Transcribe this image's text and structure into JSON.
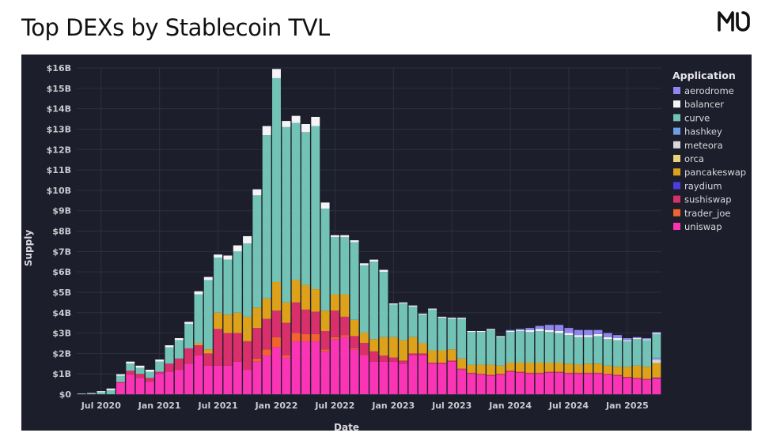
{
  "header": {
    "title": "Top DEXs by Stablecoin TVL",
    "logo": "MO"
  },
  "colors": {
    "aerodrome": "#8f86ef",
    "balancer": "#f4f4f6",
    "curve": "#72c2b6",
    "hashkey": "#6b9fe6",
    "meteora": "#d8d8dc",
    "orca": "#ead27a",
    "pancakeswap": "#dda21a",
    "raydium": "#4c3ce4",
    "sushiswap": "#d9306b",
    "trader_joe": "#f2642e",
    "uniswap": "#fb34b6"
  },
  "chart_data": {
    "type": "bar",
    "stacked": true,
    "title": "Top DEXs by Stablecoin TVL",
    "xlabel": "Date",
    "ylabel": "Supply",
    "ylim": [
      0,
      16
    ],
    "y_unit": "billions USD",
    "y_ticks": [
      "$0",
      "$1B",
      "$2B",
      "$3B",
      "$4B",
      "$5B",
      "$6B",
      "$7B",
      "$8B",
      "$9B",
      "$10B",
      "$11B",
      "$12B",
      "$13B",
      "$14B",
      "$15B",
      "$16B"
    ],
    "x_ticks": [
      "Jul 2020",
      "Jan 2021",
      "Jul 2021",
      "Jan 2022",
      "Jul 2022",
      "Jan 2023",
      "Jul 2023",
      "Jan 2024",
      "Jul 2024",
      "Jan 2025"
    ],
    "x_tick_month_index": [
      2,
      8,
      14,
      20,
      26,
      32,
      38,
      44,
      50,
      56
    ],
    "grid": true,
    "legend": {
      "title": "Application",
      "position": "right"
    },
    "categories": [
      "May 2020",
      "Jun 2020",
      "Jul 2020",
      "Aug 2020",
      "Sep 2020",
      "Oct 2020",
      "Nov 2020",
      "Dec 2020",
      "Jan 2021",
      "Feb 2021",
      "Mar 2021",
      "Apr 2021",
      "May 2021",
      "Jun 2021",
      "Jul 2021",
      "Aug 2021",
      "Sep 2021",
      "Oct 2021",
      "Nov 2021",
      "Dec 2021",
      "Jan 2022",
      "Feb 2022",
      "Mar 2022",
      "Apr 2022",
      "May 2022",
      "Jun 2022",
      "Jul 2022",
      "Aug 2022",
      "Sep 2022",
      "Oct 2022",
      "Nov 2022",
      "Dec 2022",
      "Jan 2023",
      "Feb 2023",
      "Mar 2023",
      "Apr 2023",
      "May 2023",
      "Jun 2023",
      "Jul 2023",
      "Aug 2023",
      "Sep 2023",
      "Oct 2023",
      "Nov 2023",
      "Dec 2023",
      "Jan 2024",
      "Feb 2024",
      "Mar 2024",
      "Apr 2024",
      "May 2024",
      "Jun 2024",
      "Jul 2024",
      "Aug 2024",
      "Sep 2024",
      "Oct 2024",
      "Nov 2024",
      "Dec 2024",
      "Jan 2025",
      "Feb 2025",
      "Mar 2025",
      "Apr 2025"
    ],
    "series": [
      {
        "name": "uniswap",
        "values": [
          0.0,
          0.0,
          0.0,
          0.0,
          0.55,
          0.95,
          0.8,
          0.6,
          1.0,
          1.1,
          1.2,
          1.5,
          1.9,
          1.4,
          1.4,
          1.4,
          1.6,
          1.2,
          1.6,
          1.9,
          2.3,
          1.8,
          2.6,
          2.6,
          2.6,
          2.1,
          2.7,
          2.8,
          2.2,
          1.9,
          1.6,
          1.6,
          1.6,
          1.5,
          1.9,
          1.9,
          1.5,
          1.5,
          1.6,
          1.2,
          1.0,
          0.95,
          0.9,
          0.95,
          1.1,
          1.05,
          1.0,
          1.0,
          1.05,
          1.05,
          1.0,
          1.0,
          1.0,
          1.0,
          0.95,
          0.9,
          0.8,
          0.75,
          0.7,
          0.75
        ]
      },
      {
        "name": "trader_joe",
        "values": [
          0,
          0,
          0,
          0,
          0,
          0,
          0,
          0,
          0,
          0,
          0,
          0,
          0,
          0,
          0,
          0,
          0,
          0,
          0.15,
          0.3,
          0.5,
          0.1,
          0.4,
          0.35,
          0.35,
          0.1,
          0.1,
          0.1,
          0.05,
          0.02,
          0,
          0,
          0,
          0,
          0,
          0,
          0,
          0,
          0,
          0,
          0,
          0,
          0,
          0,
          0,
          0,
          0,
          0,
          0,
          0,
          0,
          0,
          0,
          0,
          0,
          0,
          0,
          0,
          0,
          0
        ]
      },
      {
        "name": "sushiswap",
        "values": [
          0,
          0,
          0,
          0,
          0.05,
          0.2,
          0.2,
          0.2,
          0.1,
          0.4,
          0.55,
          0.75,
          0.5,
          0.6,
          1.8,
          1.6,
          1.4,
          1.4,
          1.5,
          1.5,
          1.3,
          1.6,
          1.5,
          1.2,
          1.1,
          0.9,
          1.3,
          0.9,
          0.6,
          0.6,
          0.5,
          0.3,
          0.2,
          0.15,
          0.1,
          0.1,
          0.05,
          0.05,
          0.05,
          0.05,
          0.05,
          0.05,
          0.05,
          0.05,
          0.05,
          0.05,
          0.05,
          0.05,
          0.05,
          0.05,
          0.05,
          0.05,
          0.05,
          0.05,
          0.05,
          0.05,
          0.05,
          0.05,
          0.05,
          0.05
        ]
      },
      {
        "name": "pancakeswap",
        "values": [
          0,
          0,
          0,
          0,
          0,
          0,
          0,
          0,
          0,
          0,
          0,
          0,
          0.1,
          0.2,
          0.8,
          0.9,
          1.0,
          1.2,
          1.0,
          1.0,
          1.4,
          1.0,
          1.1,
          1.2,
          1.1,
          1.0,
          0.8,
          1.1,
          0.8,
          0.5,
          0.6,
          0.9,
          1.0,
          1.0,
          0.8,
          0.5,
          0.6,
          0.6,
          0.55,
          0.5,
          0.4,
          0.45,
          0.5,
          0.4,
          0.4,
          0.45,
          0.5,
          0.5,
          0.45,
          0.45,
          0.45,
          0.4,
          0.45,
          0.45,
          0.4,
          0.4,
          0.5,
          0.6,
          0.6,
          0.7
        ]
      },
      {
        "name": "curve",
        "values": [
          0.02,
          0.04,
          0.1,
          0.2,
          0.3,
          0.35,
          0.3,
          0.3,
          0.5,
          0.8,
          0.9,
          1.2,
          2.4,
          3.4,
          2.7,
          2.7,
          3.0,
          3.6,
          5.5,
          8.0,
          10.0,
          8.6,
          7.7,
          7.5,
          8.0,
          5.0,
          2.8,
          2.8,
          3.8,
          3.3,
          3.8,
          3.2,
          1.6,
          1.8,
          1.5,
          1.4,
          2.0,
          1.6,
          1.5,
          1.95,
          1.6,
          1.6,
          1.7,
          1.4,
          1.5,
          1.55,
          1.5,
          1.55,
          1.5,
          1.45,
          1.4,
          1.35,
          1.3,
          1.35,
          1.3,
          1.3,
          1.25,
          1.3,
          1.3,
          1.15
        ]
      },
      {
        "name": "balancer",
        "values": [
          0.01,
          0.02,
          0.05,
          0.08,
          0.08,
          0.1,
          0.1,
          0.1,
          0.1,
          0.1,
          0.1,
          0.1,
          0.15,
          0.15,
          0.15,
          0.2,
          0.3,
          0.35,
          0.3,
          0.45,
          0.45,
          0.3,
          0.35,
          0.4,
          0.45,
          0.3,
          0.1,
          0.1,
          0.1,
          0.1,
          0.1,
          0.1,
          0.05,
          0.05,
          0.05,
          0.05,
          0.05,
          0.05,
          0.05,
          0.05,
          0.05,
          0.05,
          0.05,
          0.05,
          0.05,
          0.05,
          0.1,
          0.1,
          0.1,
          0.1,
          0.1,
          0.1,
          0.1,
          0.1,
          0.1,
          0.1,
          0.05,
          0.05,
          0.05,
          0.05
        ]
      },
      {
        "name": "aerodrome",
        "values": [
          0,
          0,
          0,
          0,
          0,
          0,
          0,
          0,
          0,
          0,
          0,
          0,
          0,
          0,
          0,
          0,
          0,
          0,
          0,
          0,
          0,
          0,
          0,
          0,
          0,
          0,
          0,
          0,
          0,
          0,
          0,
          0,
          0,
          0,
          0,
          0,
          0,
          0,
          0,
          0,
          0,
          0,
          0,
          0,
          0.05,
          0.05,
          0.1,
          0.15,
          0.25,
          0.3,
          0.25,
          0.25,
          0.25,
          0.2,
          0.2,
          0.15,
          0.1,
          0.05,
          0.05,
          0.05
        ]
      },
      {
        "name": "meteora",
        "values": [
          0,
          0,
          0,
          0,
          0,
          0,
          0,
          0,
          0,
          0,
          0,
          0,
          0,
          0,
          0,
          0,
          0,
          0,
          0,
          0,
          0,
          0,
          0,
          0,
          0,
          0,
          0,
          0,
          0,
          0,
          0,
          0,
          0,
          0,
          0,
          0,
          0,
          0,
          0,
          0,
          0,
          0,
          0,
          0,
          0,
          0,
          0,
          0,
          0,
          0,
          0,
          0,
          0,
          0,
          0,
          0,
          0,
          0,
          0,
          0.15
        ]
      },
      {
        "name": "hashkey",
        "values": [
          0,
          0,
          0,
          0,
          0,
          0,
          0,
          0,
          0,
          0,
          0,
          0,
          0,
          0,
          0,
          0,
          0,
          0,
          0,
          0,
          0,
          0,
          0,
          0,
          0,
          0,
          0,
          0,
          0,
          0,
          0,
          0,
          0,
          0,
          0,
          0,
          0,
          0,
          0,
          0,
          0,
          0,
          0,
          0,
          0,
          0,
          0,
          0,
          0,
          0,
          0,
          0,
          0,
          0,
          0,
          0,
          0,
          0,
          0,
          0.1
        ]
      },
      {
        "name": "orca",
        "values": [
          0,
          0,
          0,
          0,
          0,
          0,
          0,
          0,
          0,
          0,
          0,
          0,
          0,
          0,
          0,
          0,
          0,
          0,
          0,
          0,
          0,
          0,
          0,
          0,
          0,
          0,
          0,
          0,
          0,
          0,
          0,
          0,
          0,
          0,
          0,
          0,
          0,
          0,
          0,
          0,
          0,
          0,
          0,
          0,
          0,
          0,
          0,
          0,
          0,
          0,
          0,
          0,
          0,
          0,
          0,
          0,
          0,
          0,
          0,
          0.03
        ]
      },
      {
        "name": "raydium",
        "values": [
          0,
          0,
          0,
          0,
          0,
          0,
          0,
          0,
          0,
          0,
          0,
          0,
          0,
          0,
          0,
          0,
          0,
          0,
          0,
          0,
          0,
          0,
          0,
          0,
          0,
          0,
          0,
          0,
          0,
          0,
          0,
          0,
          0,
          0,
          0,
          0,
          0,
          0,
          0,
          0,
          0,
          0,
          0,
          0,
          0,
          0,
          0,
          0,
          0,
          0,
          0,
          0,
          0,
          0,
          0,
          0,
          0,
          0,
          0,
          0.02
        ]
      }
    ],
    "stack_order": [
      "uniswap",
      "trader_joe",
      "sushiswap",
      "raydium",
      "pancakeswap",
      "orca",
      "meteora",
      "hashkey",
      "curve",
      "balancer",
      "aerodrome"
    ]
  },
  "legend": {
    "title": "Application",
    "items": [
      "aerodrome",
      "balancer",
      "curve",
      "hashkey",
      "meteora",
      "orca",
      "pancakeswap",
      "raydium",
      "sushiswap",
      "trader_joe",
      "uniswap"
    ]
  }
}
